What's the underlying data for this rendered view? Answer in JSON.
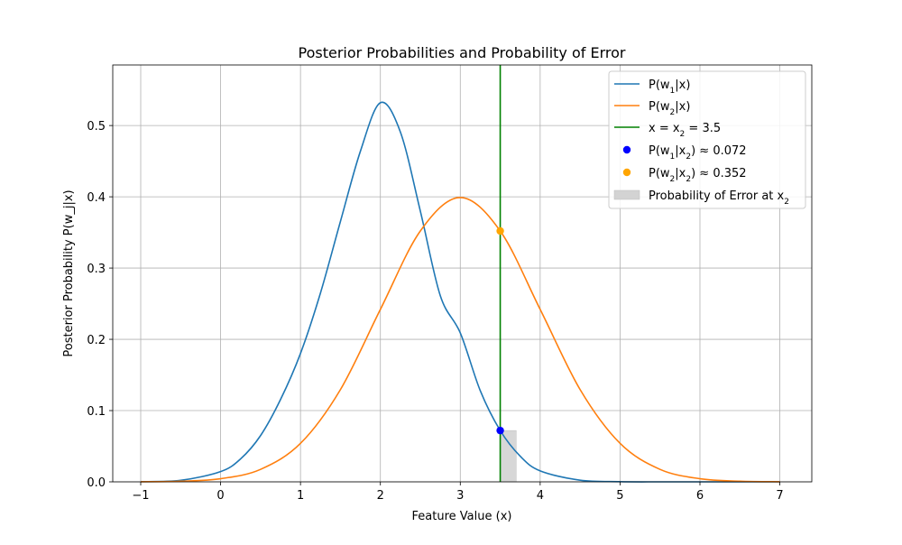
{
  "chart_data": {
    "type": "line",
    "title": "Posterior Probabilities and Probability of Error",
    "xlabel": "Feature Value (x)",
    "ylabel": "Posterior Probability P(w_j|x)",
    "xlim": [
      -1.35,
      7.4
    ],
    "ylim": [
      0,
      0.585
    ],
    "x_ticks": [
      -1,
      0,
      1,
      2,
      3,
      4,
      5,
      6,
      7
    ],
    "y_ticks": [
      0.0,
      0.1,
      0.2,
      0.3,
      0.4,
      0.5
    ],
    "grid": true,
    "legend_position": "top-right",
    "series": [
      {
        "name": "P(w1|x)",
        "kind": "line",
        "color": "#1f77b4",
        "x": [
          -1,
          -0.5,
          0,
          0.25,
          0.5,
          0.75,
          1,
          1.25,
          1.5,
          1.75,
          2,
          2.25,
          2.5,
          2.75,
          3,
          3.25,
          3.5,
          3.75,
          4,
          4.5,
          5,
          5.5,
          6,
          7
        ],
        "y": [
          0.0002,
          0.0021,
          0.0144,
          0.0322,
          0.0649,
          0.1155,
          0.1802,
          0.265,
          0.3655,
          0.464,
          0.532,
          0.491,
          0.38,
          0.2612,
          0.209,
          0.128,
          0.072,
          0.036,
          0.0154,
          0.0023,
          0.0002,
          0.0,
          0.0,
          0.0
        ]
      },
      {
        "name": "P(w2|x)",
        "kind": "line",
        "color": "#ff7f0e",
        "x": [
          -1,
          -0.5,
          0,
          0.5,
          1,
          1.5,
          2,
          2.5,
          3,
          3.5,
          4,
          4.5,
          5,
          5.5,
          6,
          6.5,
          7
        ],
        "y": [
          0.0001,
          0.0009,
          0.0044,
          0.0175,
          0.054,
          0.1295,
          0.242,
          0.352,
          0.399,
          0.352,
          0.242,
          0.1295,
          0.054,
          0.0175,
          0.0044,
          0.0009,
          0.0001
        ]
      }
    ],
    "vertical_line": {
      "label": "x = x2 = 3.5",
      "x": 3.5,
      "color": "#008000"
    },
    "points": [
      {
        "label": "P(w1|x2) ≈ 0.072",
        "x": 3.5,
        "y": 0.072,
        "color": "#0000ff"
      },
      {
        "label": "P(w2|x2) ≈ 0.352",
        "x": 3.5,
        "y": 0.352,
        "color": "#ffa500"
      }
    ],
    "error_bar": {
      "label": "Probability of Error at x2",
      "x_start": 3.5,
      "x_end": 3.7,
      "y": 0.072,
      "color": "#d3d3d3"
    }
  },
  "legend": [
    {
      "key": "w1",
      "pre": "P(",
      "var": "w",
      "sub": "1",
      "mid": "|",
      "var2": "x",
      "post": ")"
    },
    {
      "key": "w2",
      "pre": "P(",
      "var": "w",
      "sub": "2",
      "mid": "|",
      "var2": "x",
      "post": ")"
    },
    {
      "key": "vline",
      "text": "x = x",
      "sub": "2",
      "post": " = 3.5"
    },
    {
      "key": "p1",
      "text": "P(w",
      "sub": "1",
      "mid": "|x",
      "sub2": "2",
      "post": ") ≈ 0.072"
    },
    {
      "key": "p2",
      "text": "P(w",
      "sub": "2",
      "mid": "|x",
      "sub2": "2",
      "post": ") ≈ 0.352"
    },
    {
      "key": "err",
      "text": "Probability of Error at x",
      "sub": "2"
    }
  ]
}
